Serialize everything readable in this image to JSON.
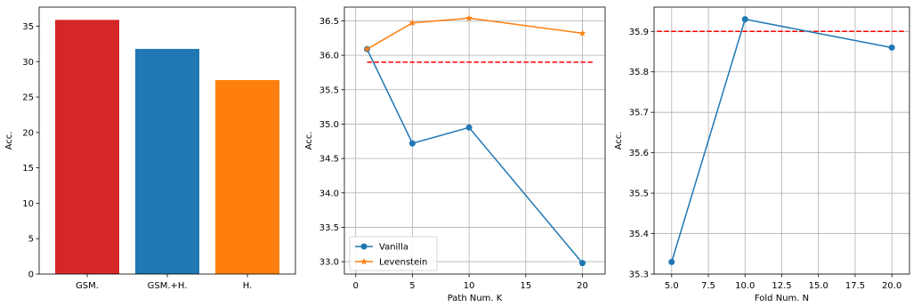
{
  "chart_data": [
    {
      "type": "bar",
      "categories": [
        "GSM.",
        "GSM.+H.",
        "H."
      ],
      "values": [
        35.9,
        31.8,
        27.4
      ],
      "colors": [
        "#d62728",
        "#1f77b4",
        "#ff7f0e"
      ],
      "xlabel": "",
      "ylabel": "Acc.",
      "ylim": [
        0,
        37.7
      ],
      "yticks": [
        0,
        5,
        10,
        15,
        20,
        25,
        30,
        35
      ],
      "grid": false
    },
    {
      "type": "line",
      "xlabel": "Path Num. K",
      "ylabel": "Acc.",
      "xlim": [
        -1,
        22
      ],
      "ylim": [
        32.82,
        36.7
      ],
      "xticks": [
        0,
        5,
        10,
        15,
        20
      ],
      "yticks": [
        33.0,
        33.5,
        34.0,
        34.5,
        35.0,
        35.5,
        36.0,
        36.5
      ],
      "grid": true,
      "legend": "lower-left",
      "series": [
        {
          "name": "Vanilla",
          "x": [
            1,
            5,
            10,
            20
          ],
          "values": [
            36.09,
            34.72,
            34.95,
            32.98
          ],
          "color": "#1f77b4",
          "marker": "circle"
        },
        {
          "name": "Levenstein",
          "x": [
            1,
            5,
            10,
            20
          ],
          "values": [
            36.09,
            36.47,
            36.54,
            36.32
          ],
          "color": "#ff7f0e",
          "marker": "star"
        }
      ],
      "reference_line": {
        "value": 35.9,
        "x": [
          1,
          21
        ],
        "color": "#ff0000",
        "style": "dashed"
      }
    },
    {
      "type": "line",
      "xlabel": "Fold Num. N",
      "ylabel": "Acc.",
      "xlim": [
        3.8,
        21.2
      ],
      "ylim": [
        35.3,
        35.96
      ],
      "xticks": [
        "5.0",
        "7.5",
        "10.0",
        "12.5",
        "15.0",
        "17.5",
        "20.0"
      ],
      "yticks": [
        "35.3",
        "35.4",
        "35.5",
        "35.6",
        "35.7",
        "35.8",
        "35.9"
      ],
      "grid": true,
      "series": [
        {
          "x": [
            5,
            10,
            20
          ],
          "values": [
            35.33,
            35.93,
            35.86
          ],
          "color": "#1f77b4",
          "marker": "circle"
        }
      ],
      "reference_line": {
        "value": 35.9,
        "x": [
          4,
          21
        ],
        "color": "#ff0000",
        "style": "dashed"
      }
    }
  ]
}
